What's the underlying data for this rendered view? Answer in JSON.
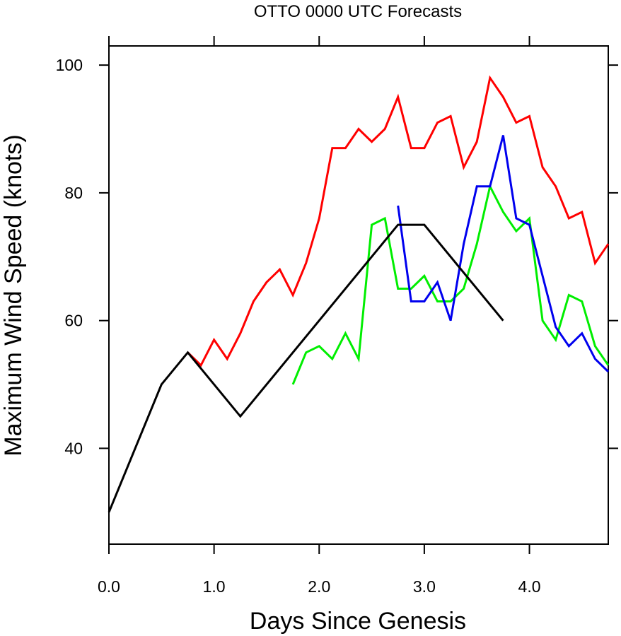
{
  "chart_data": {
    "type": "line",
    "title": "OTTO 0000 UTC Forecasts",
    "xlabel": "Days Since Genesis",
    "ylabel": "Maximum Wind Speed (knots)",
    "xlim": [
      0,
      4.75
    ],
    "ylim": [
      25,
      103
    ],
    "x_ticks": [
      0,
      1,
      2,
      3,
      4
    ],
    "x_tick_labels": [
      "0.0",
      "1.0",
      "2.0",
      "3.0",
      "4.0"
    ],
    "y_ticks": [
      40,
      60,
      80,
      100
    ],
    "y_tick_labels": [
      "40",
      "60",
      "80",
      "100"
    ],
    "grid": false,
    "legend": "none",
    "series": [
      {
        "color": "#ff0000",
        "x": [
          0.75,
          0.875,
          1.0,
          1.125,
          1.25,
          1.375,
          1.5,
          1.625,
          1.75,
          1.875,
          2.0,
          2.125,
          2.25,
          2.375,
          2.5,
          2.625,
          2.75,
          2.875,
          3.0,
          3.125,
          3.25,
          3.375,
          3.5,
          3.625,
          3.75,
          3.875,
          4.0,
          4.125,
          4.25,
          4.375,
          4.5,
          4.625,
          4.75
        ],
        "y": [
          55,
          53,
          57,
          54,
          58,
          63,
          66,
          68,
          64,
          69,
          76,
          87,
          87,
          90,
          88,
          90,
          95,
          87,
          87,
          91,
          92,
          84,
          88,
          98,
          95,
          91,
          92,
          84,
          81,
          76,
          77,
          69,
          72
        ]
      },
      {
        "color": "#00ee00",
        "x": [
          1.75,
          1.875,
          2.0,
          2.125,
          2.25,
          2.375,
          2.5,
          2.625,
          2.75,
          2.875,
          3.0,
          3.125,
          3.25,
          3.375,
          3.5,
          3.625,
          3.75,
          3.875,
          4.0,
          4.125,
          4.25,
          4.375,
          4.5,
          4.625,
          4.75
        ],
        "y": [
          50,
          55,
          56,
          54,
          58,
          54,
          75,
          76,
          65,
          65,
          67,
          63,
          63,
          65,
          72,
          81,
          77,
          74,
          76,
          60,
          57,
          64,
          63,
          56,
          53
        ]
      },
      {
        "color": "#0000ee",
        "x": [
          2.75,
          2.875,
          3.0,
          3.125,
          3.25,
          3.375,
          3.5,
          3.625,
          3.75,
          3.875,
          4.0,
          4.125,
          4.25,
          4.375,
          4.5,
          4.625,
          4.75
        ],
        "y": [
          78,
          63,
          63,
          66,
          60,
          72,
          81,
          81,
          89,
          76,
          75,
          67,
          59,
          56,
          58,
          54,
          52
        ]
      },
      {
        "color": "#000000",
        "x": [
          0,
          0.5,
          0.75,
          1.25,
          2.75,
          3.0,
          3.75
        ],
        "y": [
          30,
          50,
          55,
          45,
          75,
          75,
          60
        ]
      }
    ]
  }
}
